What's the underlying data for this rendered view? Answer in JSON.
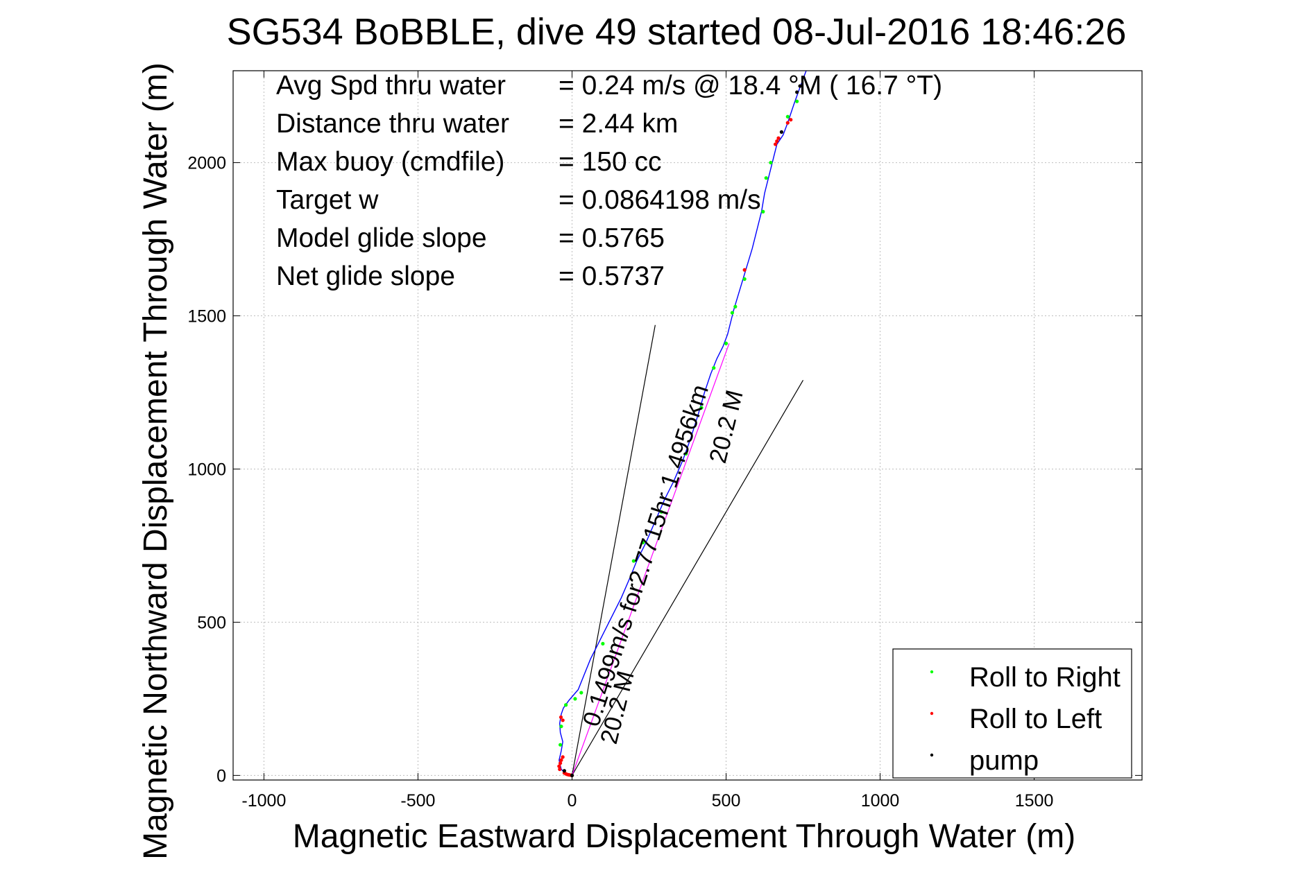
{
  "chart_data": {
    "type": "line",
    "title": "SG534 BoBBLE, dive 49 started 08-Jul-2016 18:46:26",
    "xlabel": "Magnetic Eastward Displacement Through Water (m)",
    "ylabel": "Magnetic Northward Displacement Through Water (m)",
    "xlim": [
      -1100,
      1850
    ],
    "ylim": [
      -15,
      2300
    ],
    "xticks": [
      -1000,
      -500,
      0,
      500,
      1000,
      1500
    ],
    "xtick_labels": [
      "-1000",
      "-500",
      "0",
      "500",
      "1000",
      "1500"
    ],
    "yticks": [
      0,
      500,
      1000,
      1500,
      2000
    ],
    "ytick_labels": [
      "0",
      "500",
      "1000",
      "1500",
      "2000"
    ],
    "grid": true,
    "legend_position": "bottom-right",
    "info_lines": [
      {
        "label": "Avg Spd thru water",
        "value": "=  0.24 m/s @  18.4 °M ( 16.7 °T)"
      },
      {
        "label": "Distance thru water",
        "value": "=  2.44 km"
      },
      {
        "label": "Max buoy (cmdfile)",
        "value": "= 150 cc"
      },
      {
        "label": "Target w",
        "value": "= 0.0864198 m/s"
      },
      {
        "label": "Model glide slope",
        "value": "= 0.5765"
      },
      {
        "label": "Net glide slope",
        "value": "= 0.5737"
      }
    ],
    "annotations": {
      "current_label": "0.1499m/s for2.7715hr  1.4956km",
      "heading_label_upper": "20.2 M",
      "heading_label_lower": "20.2 M"
    },
    "track": {
      "color": "#0000ff",
      "x": [
        0,
        -20,
        -35,
        -42,
        -35,
        -30,
        -38,
        -40,
        -35,
        -28,
        -10,
        20,
        40,
        60,
        80,
        100,
        130,
        160,
        190,
        210,
        240,
        270,
        300,
        330,
        360,
        385,
        410,
        430,
        450,
        470,
        490,
        505,
        515,
        525,
        540,
        555,
        570,
        585,
        600,
        615,
        625,
        640,
        655,
        665,
        685,
        700,
        720,
        745,
        760
      ],
      "y": [
        0,
        5,
        20,
        50,
        80,
        110,
        140,
        170,
        200,
        220,
        245,
        280,
        330,
        380,
        420,
        460,
        520,
        580,
        650,
        700,
        760,
        830,
        900,
        960,
        1030,
        1100,
        1180,
        1250,
        1310,
        1360,
        1400,
        1440,
        1480,
        1520,
        1570,
        1620,
        1670,
        1720,
        1780,
        1840,
        1900,
        1960,
        2020,
        2060,
        2090,
        2130,
        2190,
        2260,
        2300
      ]
    },
    "series": [
      {
        "name": "Roll to Right",
        "color": "#00ff00",
        "x": [
          -38,
          -35,
          -20,
          10,
          30,
          100,
          200,
          230,
          290,
          370,
          420,
          460,
          500,
          520,
          530,
          560,
          620,
          630,
          645,
          700,
          730
        ],
        "y": [
          100,
          160,
          230,
          250,
          270,
          430,
          700,
          760,
          860,
          1050,
          1200,
          1330,
          1410,
          1510,
          1530,
          1620,
          1840,
          1950,
          2000,
          2150,
          2200
        ]
      },
      {
        "name": "Roll to Left",
        "color": "#ff0000",
        "x": [
          -40,
          -42,
          -38,
          -35,
          -30,
          -25,
          -20,
          -15,
          -10,
          -5,
          0,
          -30,
          -36,
          560,
          660,
          665,
          670,
          700,
          710
        ],
        "y": [
          20,
          30,
          40,
          50,
          60,
          8,
          5,
          3,
          2,
          1,
          0,
          180,
          190,
          1650,
          2060,
          2070,
          2080,
          2130,
          2140
        ]
      },
      {
        "name": "pump",
        "color": "#000000",
        "x": [
          -25,
          0,
          680,
          730,
          740
        ],
        "y": [
          15,
          0,
          2100,
          2230,
          2250
        ]
      }
    ],
    "reference_lines": [
      {
        "color": "#000000",
        "x": [
          0,
          270
        ],
        "y": [
          0,
          1470
        ]
      },
      {
        "color": "#000000",
        "x": [
          0,
          750
        ],
        "y": [
          0,
          1290
        ]
      },
      {
        "color": "#ff00ff",
        "x": [
          0,
          510
        ],
        "y": [
          0,
          1410
        ]
      }
    ]
  }
}
